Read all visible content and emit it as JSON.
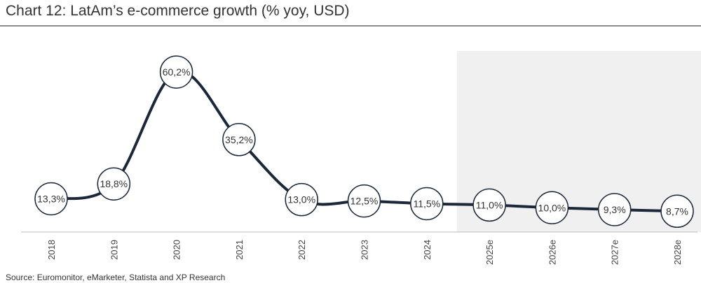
{
  "chart_data": {
    "type": "line",
    "title": "Chart 12: LatAm’s e-commerce growth (% yoy, USD)",
    "xlabel": "",
    "ylabel": "",
    "categories": [
      "2018",
      "2019",
      "2020",
      "2021",
      "2022",
      "2023",
      "2024",
      "2025e",
      "2026e",
      "2027e",
      "2028e"
    ],
    "values": [
      13.3,
      18.8,
      60.2,
      35.2,
      13.0,
      12.5,
      11.5,
      11.0,
      10.0,
      9.3,
      8.7
    ],
    "labels": [
      "13,3%",
      "18,8%",
      "60,2%",
      "35,2%",
      "13,0%",
      "12,5%",
      "11,5%",
      "11,0%",
      "10,0%",
      "9,3%",
      "8,7%"
    ],
    "forecast_from": "2025e",
    "grid": false,
    "legend": "none",
    "colors": {
      "line": "#1c2839",
      "marker_fill": "#ffffff",
      "marker_stroke": "#1c2839",
      "forecast_shading": "#f0f0f0",
      "text": "#333333"
    }
  },
  "source": "Source: Euromonitor, eMarketer, Statista and XP Research"
}
